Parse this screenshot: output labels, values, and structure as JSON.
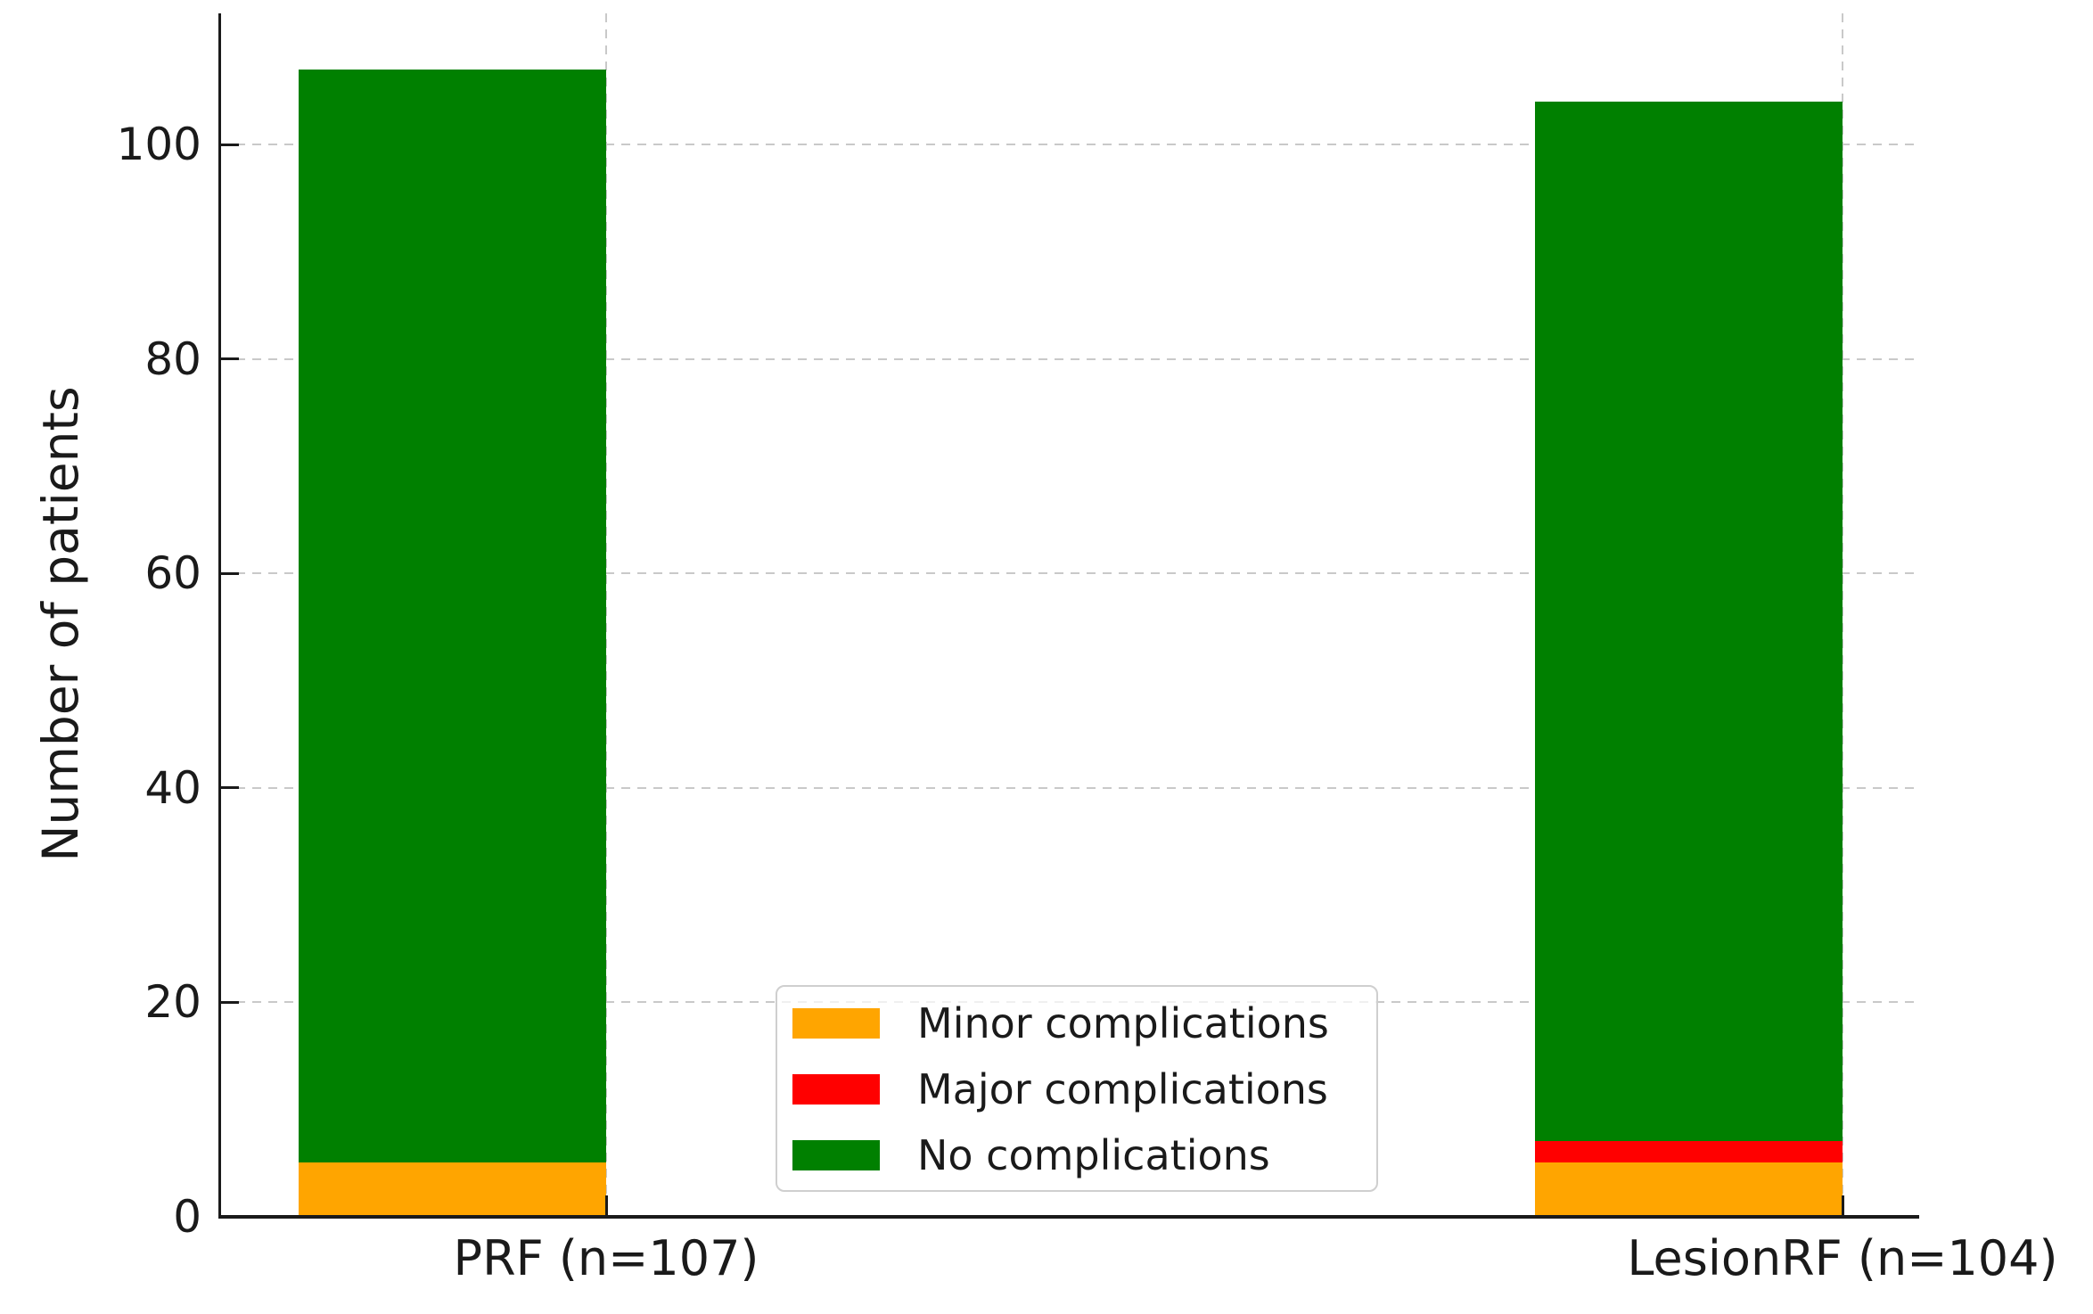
{
  "figure": {
    "background": "#ffffff",
    "text_color": "#1a1a1a",
    "grid_color": "#c9c9c9"
  },
  "chart_data": {
    "type": "bar",
    "stacked": true,
    "title": "",
    "xlabel": "",
    "ylabel": "Number of patients",
    "categories": [
      "PRF (n=107)",
      "LesionRF (n=104)"
    ],
    "series": [
      {
        "name": "Minor complications",
        "color": "#FFA500",
        "values": [
          5,
          5
        ]
      },
      {
        "name": "Major complications",
        "color": "#FF0000",
        "values": [
          0,
          2
        ]
      },
      {
        "name": "No complications",
        "color": "#008000",
        "values": [
          102,
          97
        ]
      }
    ],
    "totals": [
      107,
      104
    ],
    "yticks": [
      0,
      20,
      40,
      60,
      80,
      100
    ],
    "ylim": [
      0,
      112
    ],
    "grid": {
      "horizontal": true,
      "vertical": true,
      "style": "dashed"
    },
    "legend": {
      "position": "lower center",
      "entries": [
        "Minor complications",
        "Major complications",
        "No complications"
      ]
    }
  }
}
